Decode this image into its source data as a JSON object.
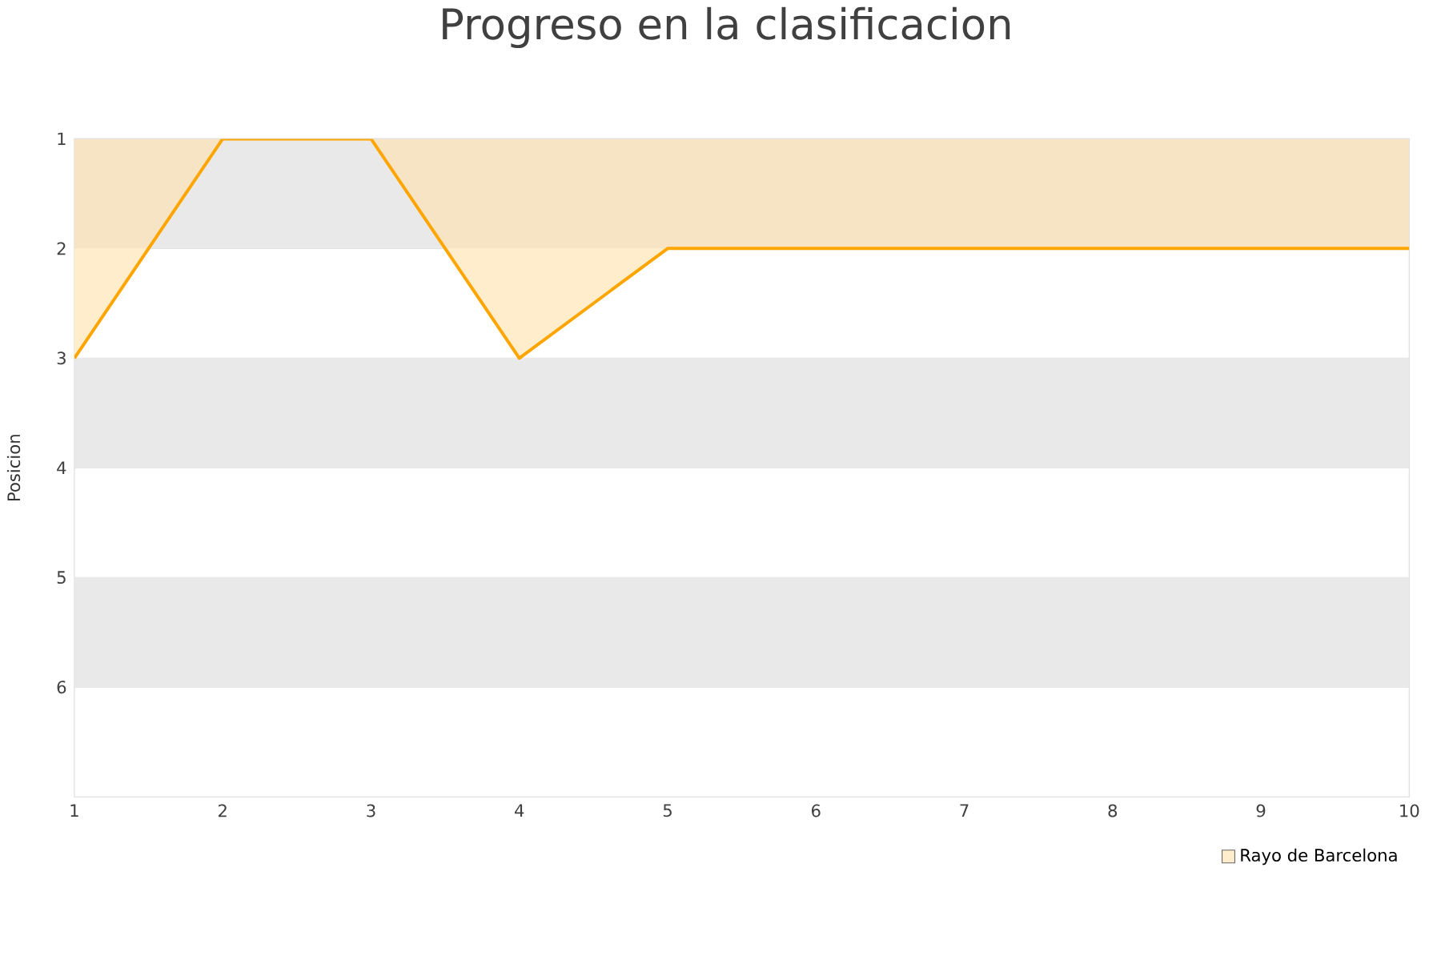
{
  "chart_data": {
    "type": "area",
    "title": "Progreso en la clasificacion",
    "ylabel": "Posicion",
    "x": [
      1,
      2,
      3,
      4,
      5,
      6,
      7,
      8,
      9,
      10
    ],
    "series": [
      {
        "name": "Rayo de Barcelona",
        "color": "#ffa500",
        "values": [
          3,
          1,
          1,
          3,
          2,
          2,
          2,
          2,
          2,
          2
        ]
      }
    ],
    "xlim": [
      1,
      10
    ],
    "xticks": [
      1,
      2,
      3,
      4,
      5,
      6,
      7,
      8,
      9,
      10
    ],
    "ylim": [
      7,
      1
    ],
    "yticks": [
      1,
      2,
      3,
      4,
      5,
      6
    ],
    "bands": [
      {
        "axis": "y",
        "from": 1,
        "to": 2,
        "color": "#f2f2f2"
      },
      {
        "axis": "y",
        "from": 3,
        "to": 4,
        "color": "#f2f2f2"
      },
      {
        "axis": "y",
        "from": 5,
        "to": 6,
        "color": "#f2f2f2"
      }
    ],
    "grid": "y",
    "legend": "bottom right",
    "marker": "none",
    "line_style": "solid"
  }
}
